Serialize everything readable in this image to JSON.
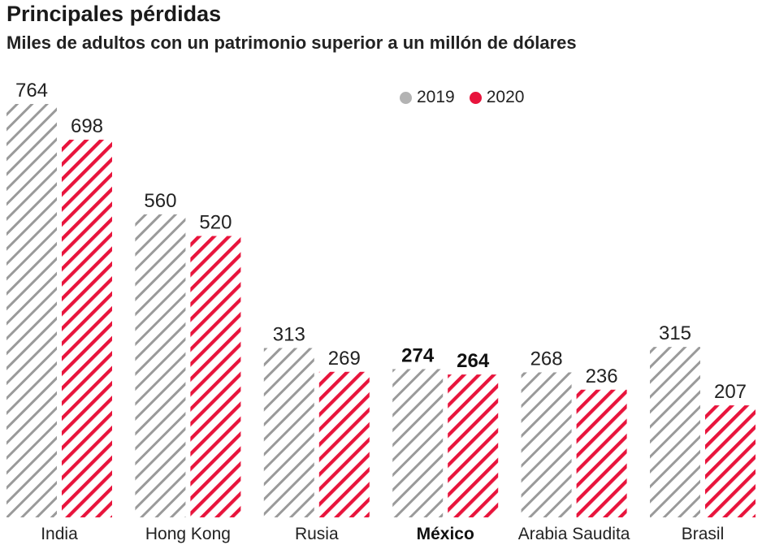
{
  "header": {
    "title": "Principales pérdidas",
    "subtitle": "Miles de adultos con un patrimonio superior a un millón de dólares"
  },
  "legend": {
    "items": [
      {
        "label": "2019",
        "color": "#b3b3b3"
      },
      {
        "label": "2020",
        "color": "#e8143c"
      }
    ]
  },
  "chart_data": {
    "type": "bar",
    "title": "Principales pérdidas",
    "subtitle": "Miles de adultos con un patrimonio superior a un millón de dólares",
    "categories": [
      "India",
      "Hong Kong",
      "Rusia",
      "México",
      "Arabia Saudita",
      "Brasil"
    ],
    "highlight_category": "México",
    "series": [
      {
        "name": "2019",
        "values": [
          764,
          560,
          313,
          274,
          268,
          315
        ],
        "color": "#9a9a9a",
        "pattern": "hatched-gray"
      },
      {
        "name": "2020",
        "values": [
          698,
          520,
          269,
          264,
          236,
          207
        ],
        "color": "#e8143c",
        "pattern": "hatched-red"
      }
    ],
    "ylim": [
      0,
      764
    ],
    "grid": false,
    "legend_position": "top-right",
    "xlabel": "",
    "ylabel": ""
  }
}
